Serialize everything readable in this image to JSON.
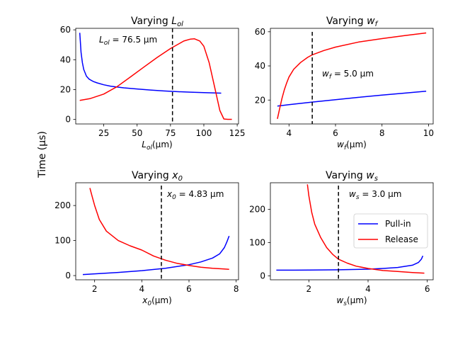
{
  "figure": {
    "ylabel": "Time (μs)"
  },
  "chart_data": [
    {
      "type": "line",
      "title": "Varying L_ol",
      "title_main": "Varying ",
      "title_var": "L",
      "title_sub": "ol",
      "xlabel": "L_ol(μm)",
      "xlabel_var": "L",
      "xlabel_sub": "ol",
      "xlabel_unit": "(μm)",
      "xlim": [
        4,
        126
      ],
      "ylim": [
        -3,
        61
      ],
      "xticks": [
        25,
        50,
        75,
        100,
        125
      ],
      "yticks": [
        0,
        20,
        40,
        60
      ],
      "annotation": {
        "var": "L",
        "sub": "ol",
        "text": " = 76.5 μm"
      },
      "vline": 76.5,
      "series": [
        {
          "name": "Pull-in",
          "color": "#0000ff",
          "x": [
            7,
            8,
            9,
            10,
            12,
            14,
            17,
            20,
            25,
            30,
            35,
            40,
            50,
            60,
            70,
            80,
            90,
            100,
            113
          ],
          "y": [
            58,
            45,
            38,
            33.5,
            29,
            27,
            25.5,
            24.5,
            23.2,
            22.3,
            21.7,
            21.2,
            20.4,
            19.7,
            19.1,
            18.6,
            18.3,
            18.0,
            17.6
          ]
        },
        {
          "name": "Release",
          "color": "#ff0000",
          "x": [
            7,
            15,
            25,
            35,
            45,
            55,
            65,
            75,
            85,
            90,
            93,
            97,
            100,
            104,
            108,
            112,
            115,
            118,
            121
          ],
          "y": [
            12.8,
            14,
            17,
            22,
            28.5,
            35,
            41.5,
            47.5,
            52.5,
            53.8,
            54,
            52.5,
            49,
            38,
            22,
            6,
            0.3,
            0.1,
            0.1
          ]
        }
      ]
    },
    {
      "type": "line",
      "title": "Varying w_f",
      "title_main": "Varying ",
      "title_var": "w",
      "title_sub": "f",
      "xlabel": "w_f(μm)",
      "xlabel_var": "w",
      "xlabel_sub": "f",
      "xlabel_unit": "(μm)",
      "xlim": [
        3.2,
        10.2
      ],
      "ylim": [
        6,
        62
      ],
      "xticks": [
        4,
        6,
        8,
        10
      ],
      "yticks": [
        20,
        40,
        60
      ],
      "annotation": {
        "var": "w",
        "sub": "f",
        "text": " = 5.0 μm"
      },
      "vline": 5.0,
      "series": [
        {
          "name": "Pull-in",
          "color": "#0000ff",
          "x": [
            3.5,
            4,
            5,
            6,
            7,
            8,
            9,
            9.9
          ],
          "y": [
            16.5,
            17.3,
            18.8,
            20.2,
            21.6,
            22.9,
            24.1,
            25.2
          ]
        },
        {
          "name": "Release",
          "color": "#ff0000",
          "x": [
            3.5,
            3.6,
            3.7,
            3.8,
            3.9,
            4.0,
            4.2,
            4.5,
            4.8,
            5.0,
            5.5,
            6,
            7,
            8,
            9,
            9.9
          ],
          "y": [
            9,
            15,
            21,
            26,
            30,
            33.5,
            38,
            42,
            45,
            46.5,
            49,
            51,
            54,
            56,
            57.8,
            59.3
          ]
        }
      ]
    },
    {
      "type": "line",
      "title": "Varying x_0",
      "title_main": "Varying ",
      "title_var": "x",
      "title_sub": "0",
      "xlabel": "x_0(μm)",
      "xlabel_var": "x",
      "xlabel_sub": "0",
      "xlabel_unit": "(μm)",
      "xlim": [
        1.2,
        8.1
      ],
      "ylim": [
        -12,
        265
      ],
      "xticks": [
        2,
        4,
        6,
        8
      ],
      "yticks": [
        0,
        100,
        200
      ],
      "annotation": {
        "var": "x",
        "sub": "0",
        "text": " = 4.83 μm"
      },
      "vline": 4.83,
      "series": [
        {
          "name": "Pull-in",
          "color": "#0000ff",
          "x": [
            1.5,
            2,
            3,
            4,
            5,
            6,
            6.5,
            7,
            7.3,
            7.5,
            7.6,
            7.7
          ],
          "y": [
            3,
            5,
            9,
            14,
            21,
            31,
            39,
            50,
            62,
            80,
            95,
            113
          ]
        },
        {
          "name": "Release",
          "color": "#ff0000",
          "x": [
            1.8,
            1.9,
            2.0,
            2.2,
            2.5,
            3.0,
            3.5,
            4.0,
            4.5,
            5.0,
            5.5,
            6.0,
            6.5,
            7.0,
            7.5,
            7.7
          ],
          "y": [
            250,
            225,
            200,
            160,
            127,
            100,
            85,
            73,
            56,
            44,
            35,
            29,
            24,
            21,
            19,
            18
          ]
        }
      ]
    },
    {
      "type": "line",
      "title": "Varying w_s",
      "title_main": "Varying ",
      "title_var": "w",
      "title_sub": "s",
      "xlabel": "w_s(μm)",
      "xlabel_var": "w",
      "xlabel_sub": "s",
      "xlabel_unit": "(μm)",
      "xlim": [
        0.7,
        6.2
      ],
      "ylim": [
        -12,
        280
      ],
      "xticks": [
        2,
        4,
        6
      ],
      "yticks": [
        0,
        100,
        200
      ],
      "annotation": {
        "var": "w",
        "sub": "s",
        "text": " = 3.0 μm"
      },
      "vline": 3.0,
      "legend": {
        "placement": "center-right",
        "entries": [
          "Pull-in",
          "Release"
        ]
      },
      "series": [
        {
          "name": "Pull-in",
          "color": "#0000ff",
          "x": [
            0.9,
            1.5,
            2,
            3,
            4,
            4.5,
            5,
            5.5,
            5.7,
            5.8,
            5.85
          ],
          "y": [
            17,
            17,
            17.5,
            18,
            20,
            22,
            25,
            32,
            40,
            50,
            60
          ]
        },
        {
          "name": "Release",
          "color": "#ff0000",
          "x": [
            1.95,
            2.0,
            2.1,
            2.2,
            2.4,
            2.6,
            2.8,
            3.0,
            3.3,
            3.6,
            4.0,
            4.5,
            5.0,
            5.5,
            5.9
          ],
          "y": [
            275,
            240,
            190,
            155,
            115,
            85,
            65,
            50,
            38,
            29,
            22,
            16,
            13,
            10,
            8
          ]
        }
      ]
    }
  ]
}
